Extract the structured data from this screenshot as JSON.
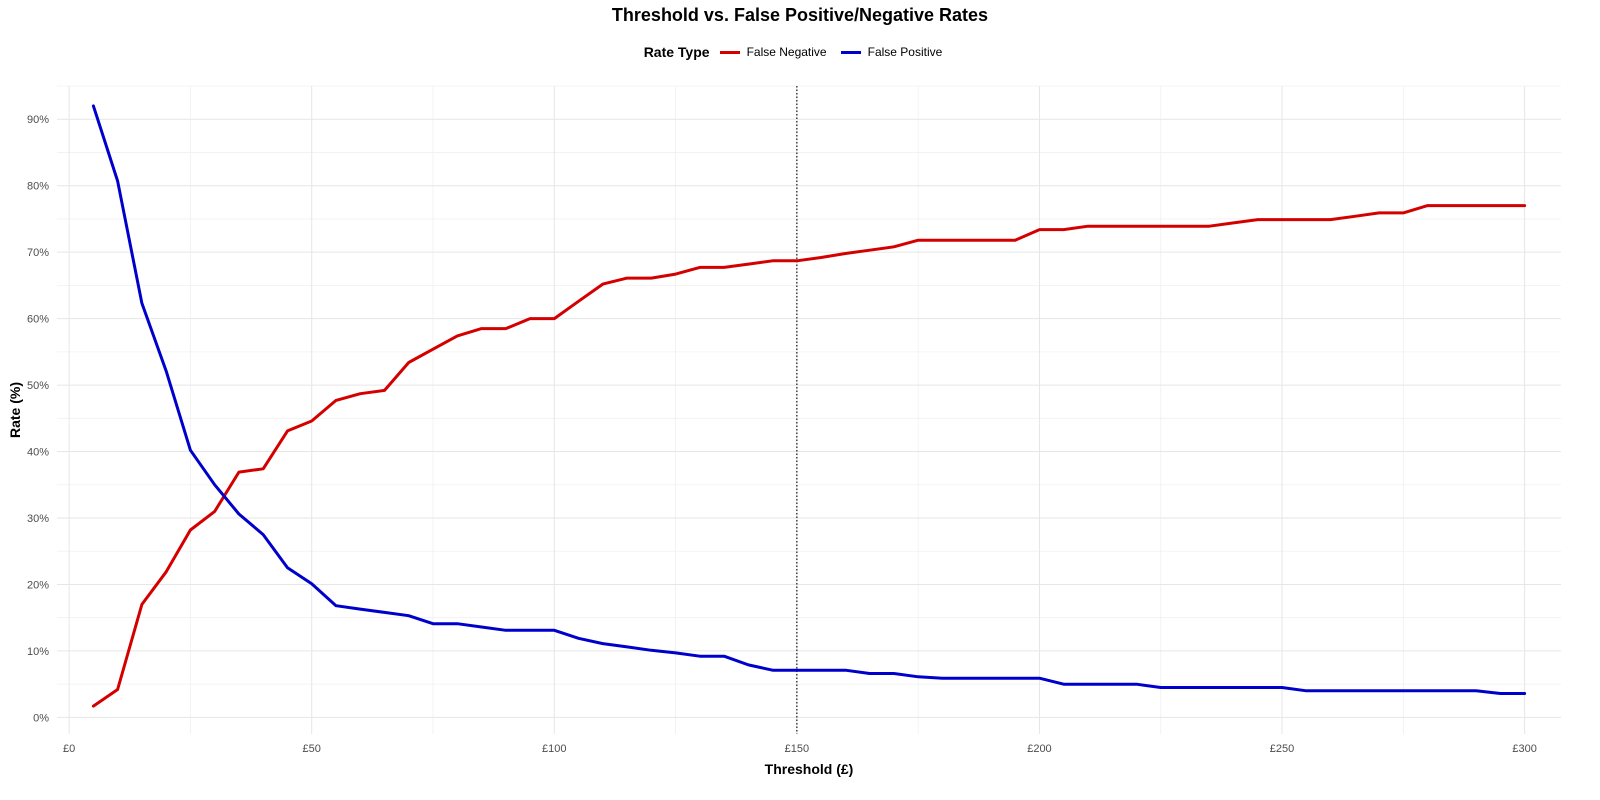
{
  "chart_data": {
    "type": "line",
    "title": "Threshold vs. False Positive/Negative Rates",
    "xlabel": "Threshold (£)",
    "ylabel": "Rate (%)",
    "xlim": [
      -2.5,
      307.5
    ],
    "ylim": [
      -2.5,
      95
    ],
    "x_ticks": [
      0,
      50,
      100,
      150,
      200,
      250,
      300
    ],
    "x_tick_labels": [
      "£0",
      "£50",
      "£100",
      "£150",
      "£200",
      "£250",
      "£300"
    ],
    "y_ticks": [
      0,
      10,
      20,
      30,
      40,
      50,
      60,
      70,
      80,
      90
    ],
    "y_tick_labels": [
      "0%",
      "10%",
      "20%",
      "30%",
      "40%",
      "50%",
      "60%",
      "70%",
      "80%",
      "90%"
    ],
    "grid": true,
    "legend": {
      "title": "Rate Type",
      "position": "top"
    },
    "reference_line": {
      "x": 150,
      "style": "dotted"
    },
    "x": [
      5,
      10,
      15,
      20,
      25,
      30,
      35,
      40,
      45,
      50,
      55,
      60,
      65,
      70,
      75,
      80,
      85,
      90,
      95,
      100,
      105,
      110,
      115,
      120,
      125,
      130,
      135,
      140,
      145,
      150,
      155,
      160,
      165,
      170,
      175,
      180,
      185,
      190,
      195,
      200,
      205,
      210,
      215,
      220,
      225,
      230,
      235,
      240,
      245,
      250,
      255,
      260,
      265,
      270,
      275,
      280,
      285,
      290,
      295,
      300
    ],
    "series": [
      {
        "name": "False Negative",
        "color": "#d40000",
        "values": [
          1.7,
          4.2,
          17,
          21.9,
          28.2,
          31,
          36.9,
          37.4,
          43.1,
          44.6,
          47.7,
          48.7,
          49.2,
          53.4,
          55.4,
          57.4,
          58.5,
          58.5,
          60,
          60,
          62.6,
          65.2,
          66.1,
          66.1,
          66.7,
          67.7,
          67.7,
          68.2,
          68.7,
          68.7,
          69.2,
          69.8,
          70.3,
          70.8,
          71.8,
          71.8,
          71.8,
          71.8,
          71.8,
          73.4,
          73.4,
          73.9,
          73.9,
          73.9,
          73.9,
          73.9,
          73.9,
          74.4,
          74.9,
          74.9,
          74.9,
          74.9,
          75.4,
          75.9,
          75.9,
          77,
          77,
          77,
          77,
          77
        ]
      },
      {
        "name": "False Positive",
        "color": "#0000cc",
        "values": [
          92,
          80.7,
          62.3,
          52.1,
          40.2,
          35,
          30.6,
          27.5,
          22.5,
          20.1,
          16.8,
          16.3,
          15.8,
          15.3,
          14.1,
          14.1,
          13.6,
          13.1,
          13.1,
          13.1,
          11.9,
          11.1,
          10.6,
          10.1,
          9.7,
          9.2,
          9.2,
          7.9,
          7.1,
          7.1,
          7.1,
          7.1,
          6.6,
          6.6,
          6.1,
          5.9,
          5.9,
          5.9,
          5.9,
          5.9,
          5,
          5,
          5,
          5,
          4.5,
          4.5,
          4.5,
          4.5,
          4.5,
          4.5,
          4,
          4,
          4,
          4,
          4,
          4,
          4,
          4,
          3.6,
          3.6
        ]
      }
    ]
  }
}
